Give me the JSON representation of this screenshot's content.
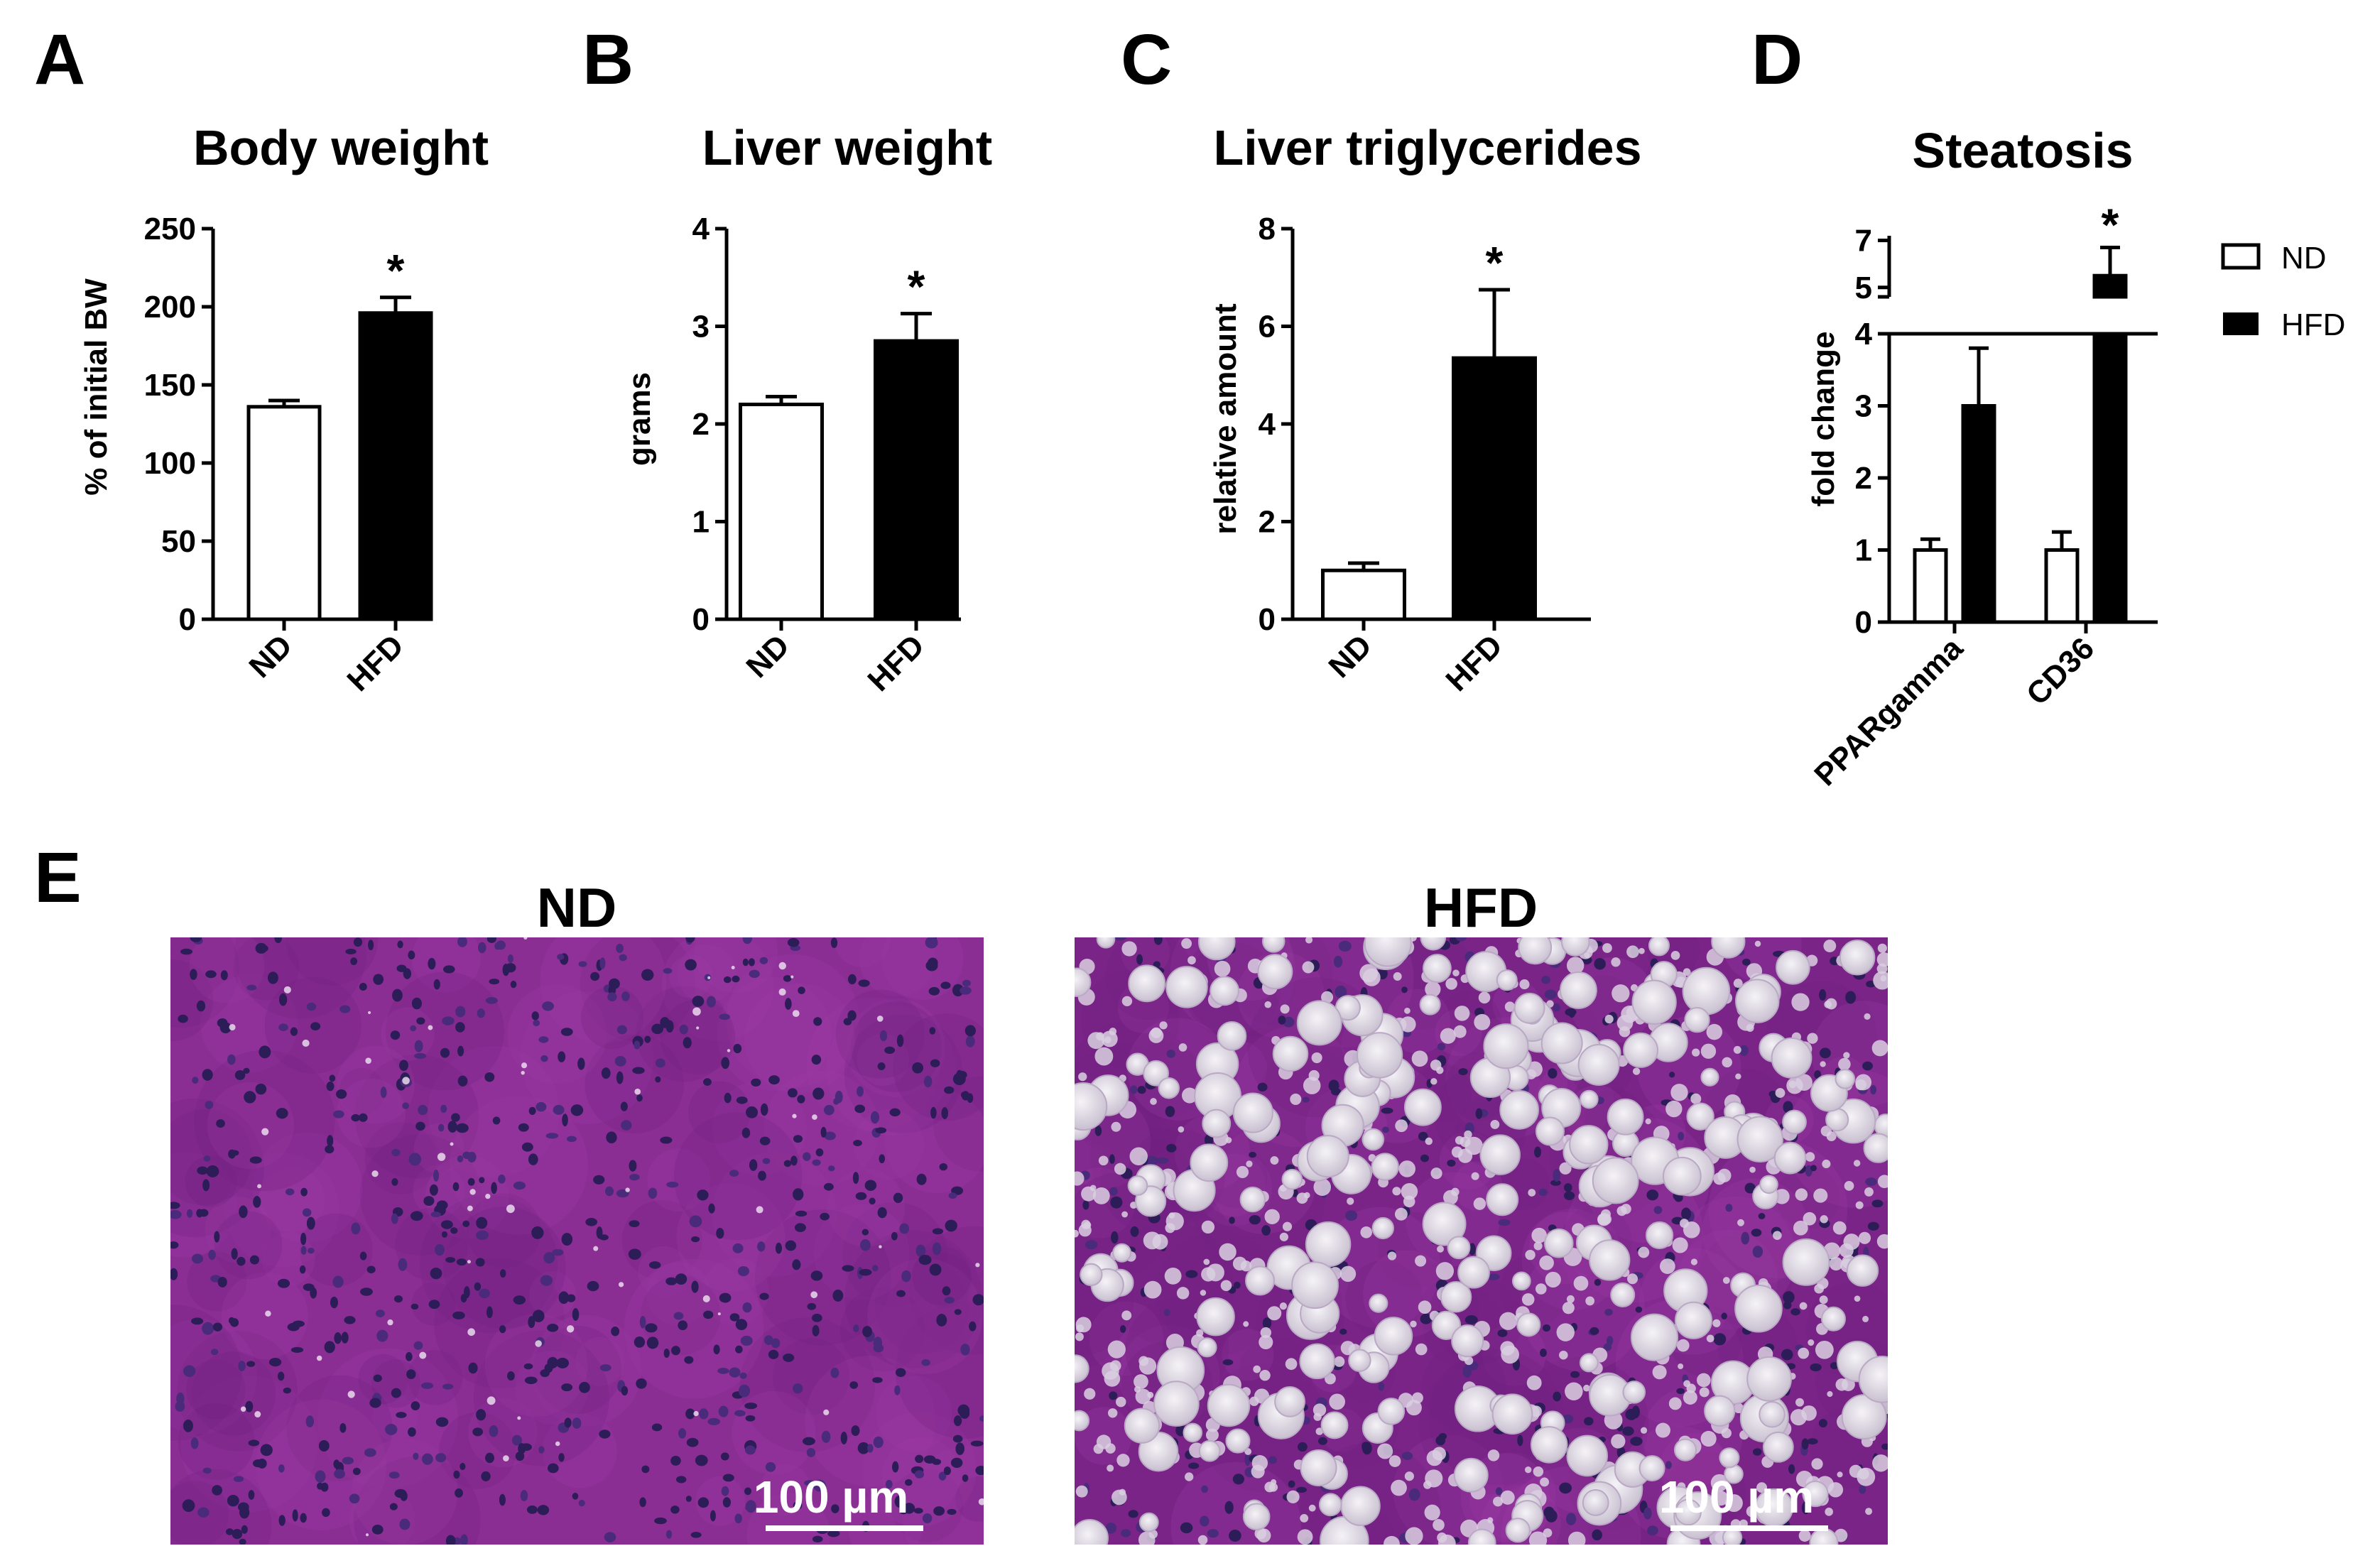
{
  "colors": {
    "nd_fill": "#ffffff",
    "hfd_fill": "#000000",
    "stain_base": "#8b2e94",
    "nucleus": "#2c1c58",
    "fat_droplet": "#e6e1ea"
  },
  "panels": [
    {
      "letter": "A"
    },
    {
      "letter": "B"
    },
    {
      "letter": "C"
    },
    {
      "letter": "D"
    },
    {
      "letter": "E"
    }
  ],
  "chart_data": [
    {
      "panel": "A",
      "type": "bar",
      "title": "Body weight",
      "ylabel": "% of initial BW",
      "categories": [
        "ND",
        "HFD"
      ],
      "values": [
        136,
        196
      ],
      "errors": [
        4,
        10
      ],
      "ylim": [
        0,
        250
      ],
      "yticks": [
        0,
        50,
        100,
        150,
        200,
        250
      ],
      "significance": [
        "",
        "*"
      ],
      "fills": [
        "nd",
        "hfd"
      ]
    },
    {
      "panel": "B",
      "type": "bar",
      "title": "Liver weight",
      "ylabel": "grams",
      "categories": [
        "ND",
        "HFD"
      ],
      "values": [
        2.2,
        2.85
      ],
      "errors": [
        0.08,
        0.28
      ],
      "ylim": [
        0,
        4
      ],
      "yticks": [
        0,
        1,
        2,
        3,
        4
      ],
      "significance": [
        "",
        "*"
      ],
      "fills": [
        "nd",
        "hfd"
      ]
    },
    {
      "panel": "C",
      "type": "bar",
      "title": "Liver triglycerides",
      "ylabel": "relative amount",
      "categories": [
        "ND",
        "HFD"
      ],
      "values": [
        1.0,
        5.35
      ],
      "errors": [
        0.15,
        1.4
      ],
      "ylim": [
        0,
        8
      ],
      "yticks": [
        0,
        2,
        4,
        6,
        8
      ],
      "significance": [
        "",
        "*"
      ],
      "fills": [
        "nd",
        "hfd"
      ]
    },
    {
      "panel": "D",
      "type": "bar",
      "title": "Steatosis",
      "ylabel": "fold change",
      "categories": [
        "PPARgamma",
        "CD36"
      ],
      "series": [
        {
          "name": "ND",
          "values": [
            1.0,
            1.0
          ],
          "errors": [
            0.15,
            0.25
          ]
        },
        {
          "name": "HFD",
          "values": [
            3.0,
            5.5
          ],
          "errors": [
            0.8,
            1.2
          ]
        }
      ],
      "yticks_lower": [
        0,
        1,
        2,
        3,
        4
      ],
      "yticks_upper": [
        5,
        7
      ],
      "axis_break": [
        4,
        4.6
      ],
      "significance": [
        "",
        "*"
      ],
      "legend": [
        "ND",
        "HFD"
      ],
      "legend_position": "right"
    }
  ],
  "micrographs": [
    {
      "title": "ND",
      "scale_bar": "100 µm"
    },
    {
      "title": "HFD",
      "scale_bar": "100 µm"
    }
  ]
}
